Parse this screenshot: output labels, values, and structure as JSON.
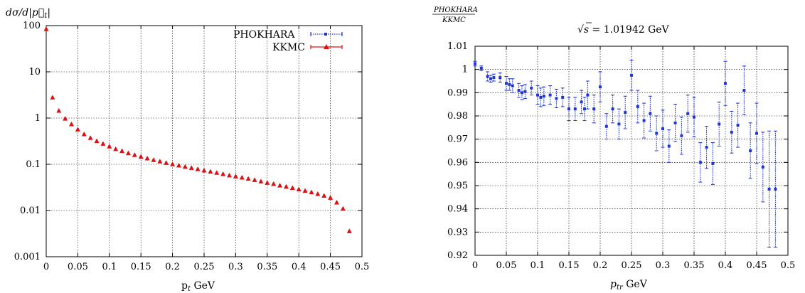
{
  "chart_data": [
    {
      "type": "scatter",
      "title": "",
      "ylabel_html": "dσ/d|p⃗t|",
      "ylabel": "dσ/d|p_t|",
      "xlabel": "pt GeV",
      "xlabel_main": "p",
      "xlabel_sub": "t",
      "xlabel_unit": " GeV",
      "yscale": "log",
      "xlim": [
        0,
        0.5
      ],
      "ylim": [
        0.001,
        100
      ],
      "xticks": [
        "0",
        "0.05",
        "0.1",
        "0.15",
        "0.2",
        "0.25",
        "0.3",
        "0.35",
        "0.4",
        "0.45",
        "0.5"
      ],
      "yticks": [
        "0.001",
        "0.01",
        "0.1",
        "1",
        "10",
        "100"
      ],
      "grid": true,
      "legend_position": "top-right",
      "colors": {
        "PHOKHARA": "#1f35d6",
        "KKMC": "#e01010"
      },
      "x": [
        0.0,
        0.01,
        0.02,
        0.03,
        0.04,
        0.05,
        0.06,
        0.07,
        0.08,
        0.09,
        0.1,
        0.11,
        0.12,
        0.13,
        0.14,
        0.15,
        0.16,
        0.17,
        0.18,
        0.19,
        0.2,
        0.21,
        0.22,
        0.23,
        0.24,
        0.25,
        0.26,
        0.27,
        0.28,
        0.29,
        0.3,
        0.31,
        0.32,
        0.33,
        0.34,
        0.35,
        0.36,
        0.37,
        0.38,
        0.39,
        0.4,
        0.41,
        0.42,
        0.43,
        0.44,
        0.45,
        0.46,
        0.47,
        0.48
      ],
      "series": [
        {
          "name": "PHOKHARA",
          "values": [
            85,
            2.8,
            1.45,
            0.98,
            0.74,
            0.57,
            0.45,
            0.375,
            0.32,
            0.28,
            0.245,
            0.215,
            0.195,
            0.175,
            0.16,
            0.147,
            0.135,
            0.125,
            0.116,
            0.108,
            0.101,
            0.095,
            0.089,
            0.084,
            0.079,
            0.074,
            0.07,
            0.066,
            0.062,
            0.058,
            0.055,
            0.052,
            0.049,
            0.046,
            0.043,
            0.04,
            0.038,
            0.035,
            0.033,
            0.031,
            0.029,
            0.027,
            0.025,
            0.023,
            0.021,
            0.019,
            0.015,
            0.011,
            0.0036
          ]
        },
        {
          "name": "KKMC",
          "values": [
            85,
            2.8,
            1.45,
            0.98,
            0.74,
            0.57,
            0.45,
            0.375,
            0.32,
            0.28,
            0.245,
            0.215,
            0.195,
            0.175,
            0.16,
            0.147,
            0.135,
            0.125,
            0.116,
            0.108,
            0.101,
            0.095,
            0.089,
            0.084,
            0.079,
            0.074,
            0.07,
            0.066,
            0.062,
            0.058,
            0.055,
            0.052,
            0.049,
            0.046,
            0.043,
            0.04,
            0.038,
            0.035,
            0.033,
            0.031,
            0.029,
            0.027,
            0.025,
            0.023,
            0.021,
            0.019,
            0.015,
            0.011,
            0.0036
          ]
        }
      ]
    },
    {
      "type": "scatter",
      "ylabel_num": "PHOKHARA",
      "ylabel_den": "KKMC",
      "title_sqrt": "√s",
      "title_value": " = 1.01942 GeV",
      "xlabel": "ptr GeV",
      "xlabel_main": "p",
      "xlabel_sub": "tr",
      "xlabel_unit": " GeV",
      "xlim": [
        0,
        0.5
      ],
      "ylim": [
        0.92,
        1.01
      ],
      "xticks": [
        "0",
        "0.05",
        "0.1",
        "0.15",
        "0.2",
        "0.25",
        "0.3",
        "0.35",
        "0.4",
        "0.45",
        "0.5"
      ],
      "yticks": [
        "0.92",
        "0.93",
        "0.94",
        "0.95",
        "0.96",
        "0.97",
        "0.98",
        "0.99",
        "1",
        "1.01"
      ],
      "grid": true,
      "colors": {
        "points": "#1f35d6"
      },
      "x": [
        0.0,
        0.01,
        0.02,
        0.025,
        0.03,
        0.04,
        0.05,
        0.055,
        0.06,
        0.07,
        0.075,
        0.08,
        0.09,
        0.1,
        0.105,
        0.11,
        0.12,
        0.13,
        0.14,
        0.15,
        0.16,
        0.17,
        0.175,
        0.18,
        0.19,
        0.2,
        0.21,
        0.22,
        0.23,
        0.24,
        0.25,
        0.26,
        0.27,
        0.28,
        0.29,
        0.3,
        0.31,
        0.32,
        0.33,
        0.34,
        0.35,
        0.36,
        0.37,
        0.38,
        0.39,
        0.4,
        0.41,
        0.42,
        0.43,
        0.44,
        0.45,
        0.46,
        0.47,
        0.48
      ],
      "series": [
        {
          "name": "",
          "values": [
            1.0025,
            1.0005,
            0.997,
            0.996,
            0.9965,
            0.9965,
            0.994,
            0.9935,
            0.993,
            0.991,
            0.99,
            0.9905,
            0.992,
            0.989,
            0.988,
            0.9885,
            0.989,
            0.9875,
            0.988,
            0.983,
            0.983,
            0.986,
            0.983,
            0.989,
            0.983,
            0.9925,
            0.9755,
            0.983,
            0.9765,
            0.9815,
            0.9975,
            0.984,
            0.978,
            0.981,
            0.9725,
            0.9745,
            0.967,
            0.977,
            0.9715,
            0.981,
            0.9795,
            0.96,
            0.9665,
            0.9595,
            0.9765,
            0.994,
            0.973,
            0.976,
            0.991,
            0.965,
            0.9725,
            0.958,
            0.9485,
            0.9485
          ],
          "errors": [
            0.001,
            0.001,
            0.002,
            0.0015,
            0.0015,
            0.002,
            0.003,
            0.0025,
            0.003,
            0.003,
            0.003,
            0.003,
            0.003,
            0.004,
            0.004,
            0.004,
            0.004,
            0.004,
            0.004,
            0.005,
            0.005,
            0.005,
            0.005,
            0.006,
            0.006,
            0.0065,
            0.0055,
            0.006,
            0.0065,
            0.007,
            0.0065,
            0.007,
            0.0075,
            0.0075,
            0.0075,
            0.008,
            0.007,
            0.008,
            0.008,
            0.008,
            0.0085,
            0.0085,
            0.009,
            0.009,
            0.0095,
            0.0095,
            0.009,
            0.0095,
            0.0105,
            0.012,
            0.013,
            0.015,
            0.025,
            0.025
          ]
        }
      ]
    }
  ]
}
